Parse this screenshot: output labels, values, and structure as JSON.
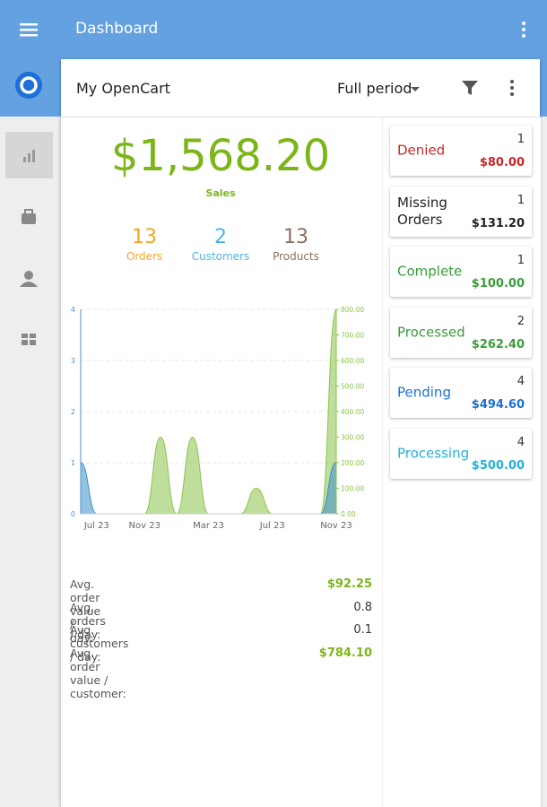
{
  "header": {
    "title": "Dashboard"
  },
  "store": {
    "name": "My OpenCart",
    "period": "Full period"
  },
  "summary": {
    "sales": "$1,568.20",
    "sales_label": "Sales",
    "stats": [
      {
        "value": 13,
        "label": "Orders"
      },
      {
        "value": 2,
        "label": "Customers"
      },
      {
        "value": 13,
        "label": "Products"
      }
    ]
  },
  "chart_data": {
    "type": "area",
    "categories": [
      null,
      "Jul 23",
      null,
      null,
      "Nov 23",
      null,
      null,
      null,
      "Mar 23",
      null,
      null,
      null,
      "Jul 23",
      null,
      null,
      null,
      "Nov 23"
    ],
    "series": [
      {
        "color": "#8bc34a",
        "axis": "y2",
        "values": [
          0,
          0,
          0,
          0,
          0,
          300,
          0,
          300,
          0,
          0,
          0,
          100,
          0,
          0,
          0,
          0,
          800
        ]
      },
      {
        "color": "#3d8fc9",
        "values": [
          1,
          0,
          0,
          0,
          0,
          0,
          0,
          0,
          0,
          0,
          0,
          0,
          0,
          0,
          0,
          0,
          1
        ]
      }
    ],
    "ylim": [
      0,
      4
    ],
    "yticks": [
      0,
      1,
      2,
      3,
      4
    ],
    "y2lim": [
      0,
      800
    ],
    "y2ticks": [
      {
        "value": 0,
        "label": "0.00"
      },
      {
        "value": 100,
        "label": "100.00"
      },
      {
        "value": 200,
        "label": "200.00"
      },
      {
        "value": 300,
        "label": "300.00"
      },
      {
        "value": 400,
        "label": "400.00"
      },
      {
        "value": 500,
        "label": "500.00"
      },
      {
        "value": 600,
        "label": "600.00"
      },
      {
        "value": 700,
        "label": "700.00"
      },
      {
        "value": 800,
        "label": "800.00"
      }
    ],
    "grid": true
  },
  "averages": [
    {
      "label": "Avg. order value / day:",
      "value": "$92.25"
    },
    {
      "label": "Avg. orders / day:",
      "value": "0.8"
    },
    {
      "label": "Avg. customers / day:",
      "value": "0.1"
    },
    {
      "label": "Avg. order value / customer:",
      "value": "$784.10"
    }
  ],
  "statuses": [
    {
      "name": "Denied",
      "count": 1,
      "amount": "$80.00"
    },
    {
      "name": "Missing Orders",
      "count": 1,
      "amount": "$131.20"
    },
    {
      "name": "Complete",
      "count": 1,
      "amount": "$100.00"
    },
    {
      "name": "Processed",
      "count": 2,
      "amount": "$262.40"
    },
    {
      "name": "Pending",
      "count": 4,
      "amount": "$494.60"
    },
    {
      "name": "Processing",
      "count": 4,
      "amount": "$500.00"
    }
  ]
}
